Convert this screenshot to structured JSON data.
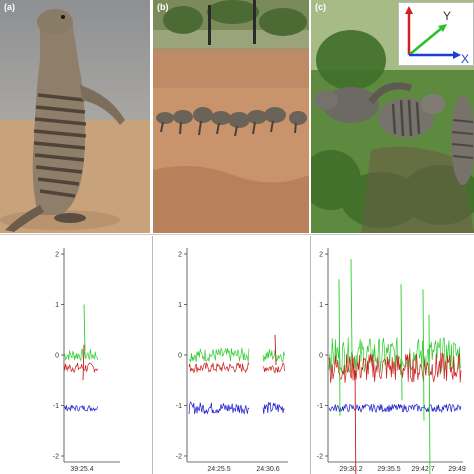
{
  "panels": [
    {
      "letter": "(a)",
      "photo": "standing-mongoose-photo",
      "x_tick": "39:25.4",
      "y_ticks": [
        "2",
        "1",
        "0",
        "-1",
        "-2"
      ]
    },
    {
      "letter": "(b)",
      "photo": "mongoose-group-photo",
      "x_ticks": [
        "24:25.5",
        "24:30.6"
      ],
      "y_ticks": [
        "2",
        "1",
        "0",
        "-1",
        "-2"
      ]
    },
    {
      "letter": "(c)",
      "photo": "mongoose-foraging-photo",
      "x_ticks": [
        "29:30.2",
        "29:35.5",
        "29:42.7",
        "29:49"
      ],
      "y_ticks": [
        "2",
        "1",
        "0",
        "-1",
        "-2"
      ]
    }
  ],
  "axis_legend": {
    "y_label": "Y",
    "x_label": "X"
  },
  "colors": {
    "z_axis": "#d21f1f",
    "y_axis": "#2bbf2b",
    "x_axis": "#1e3fd6",
    "green_trace": "#2ecc2e",
    "red_trace": "#cc1a1a",
    "blue_trace": "#1a1acc"
  }
}
